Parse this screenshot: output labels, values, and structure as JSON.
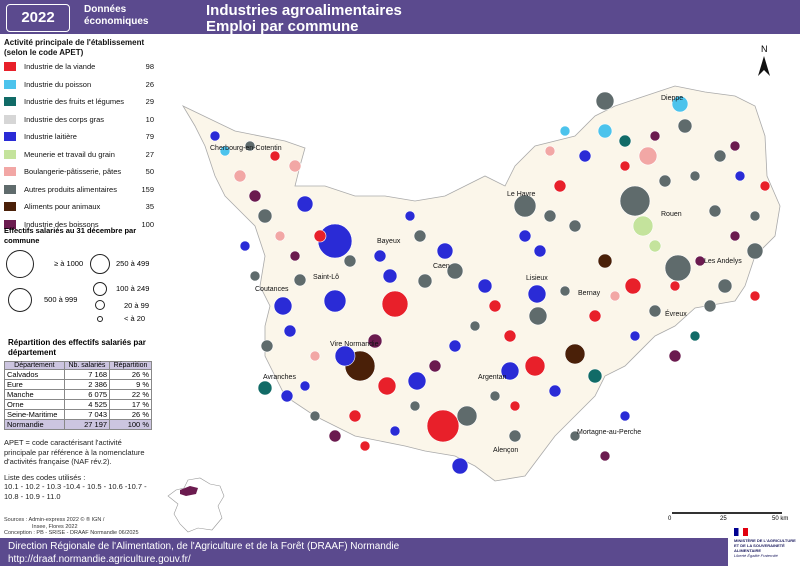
{
  "header": {
    "year": "2022",
    "tag": "Données économiques",
    "title_line1": "Industries agroalimentaires",
    "title_line2": "Emploi par commune"
  },
  "legend": {
    "activity_title": "Activité principale de l'établissement (selon le code APET)",
    "categories": [
      {
        "label": "Industrie de la viande",
        "count": "98",
        "color": "#e8202a"
      },
      {
        "label": "Industrie du poisson",
        "count": "26",
        "color": "#4cc3ec"
      },
      {
        "label": "Industrie des fruits et légumes",
        "count": "29",
        "color": "#116b67"
      },
      {
        "label": "Industrie des corps gras",
        "count": "10",
        "color": "#d6d6d6"
      },
      {
        "label": "Industrie laitière",
        "count": "79",
        "color": "#2a2bd6"
      },
      {
        "label": "Meunerie et travail du grain",
        "count": "27",
        "color": "#c4e39c"
      },
      {
        "label": "Boulangerie-pâtisserie, pâtes",
        "count": "50",
        "color": "#f2a7a5"
      },
      {
        "label": "Autres produits alimentaires",
        "count": "159",
        "color": "#5f6b6c"
      },
      {
        "label": "Aliments pour animaux",
        "count": "35",
        "color": "#4a2008"
      },
      {
        "label": "Industrie des boissons",
        "count": "100",
        "color": "#6b1b4f"
      }
    ],
    "sizes_title": "Effectifs salariés au 31 décembre par commune",
    "size_labels": [
      "≥ à 1000",
      "250 à 499",
      "500 à 999",
      "100 à 249",
      "20 à 99",
      "< à 20"
    ]
  },
  "dept_table": {
    "title": "Répartition des effectifs salariés par département",
    "headers": [
      "Département",
      "Nb. salariés",
      "Répartition"
    ],
    "rows": [
      [
        "Calvados",
        "7 168",
        "26 %"
      ],
      [
        "Eure",
        "2 386",
        "9 %"
      ],
      [
        "Manche",
        "6 075",
        "22 %"
      ],
      [
        "Orne",
        "4 525",
        "17 %"
      ],
      [
        "Seine-Maritime",
        "7 043",
        "26 %"
      ],
      [
        "Normandie",
        "27 197",
        "100 %"
      ]
    ]
  },
  "notes": {
    "apet": "APET = code caractérisant l'activité principale par référence à la nomenclature d'activités française (NAF rév.2).",
    "codes_title": "Liste des codes utilisés :",
    "codes": "10.1 - 10.2 - 10.3 -10.4 - 10.5 - 10.6 -10.7 - 10.8 - 10.9 - 11.0"
  },
  "sources": {
    "line1": "Sources : Admin-express 2022 © ® IGN /",
    "line2": "Insee, Flores 2022",
    "line3": "Conception : PB - SRISE - DRAAF Normandie 06/2025"
  },
  "map": {
    "north": "N",
    "cities": [
      "Cherbourg-en-Cotentin",
      "Dieppe",
      "Le Havre",
      "Rouen",
      "Caen",
      "Bayeux",
      "Saint-Lô",
      "Coutances",
      "Lisieux",
      "Bernay",
      "Les Andelys",
      "Évreux",
      "Vire Normandie",
      "Avranches",
      "Argentan",
      "Alençon",
      "Mortagne-au-Perche"
    ]
  },
  "scale": {
    "labels": [
      "0",
      "25",
      "50 km"
    ]
  },
  "footer": {
    "line1": "Direction Régionale de l'Alimentation, de l'Agriculture et de la Forêt (DRAAF) Normandie",
    "line2": "http://draaf.normandie.agriculture.gouv.fr/"
  },
  "logo": {
    "text": "MINISTÈRE DE L'AGRICULTURE ET DE LA SOUVERAINETÉ ALIMENTAIRE",
    "motto": "Liberté Égalité Fraternité"
  }
}
